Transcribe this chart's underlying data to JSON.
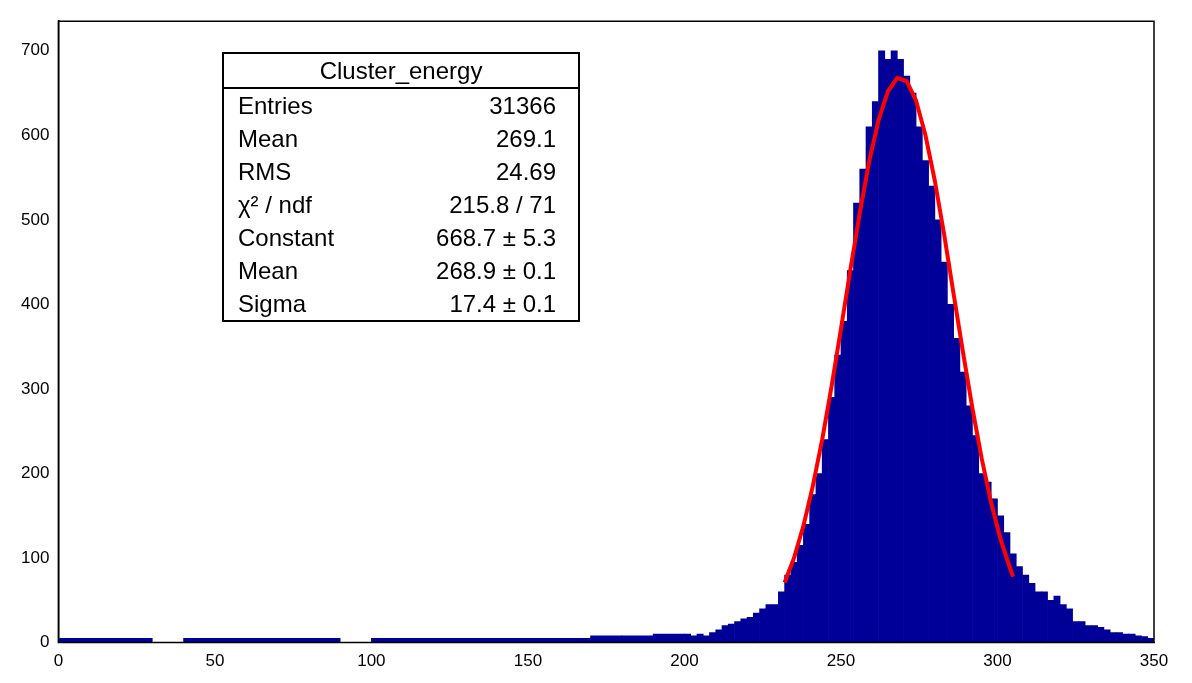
{
  "chart_data": {
    "type": "histogram",
    "title": "Cluster_energy",
    "annotations": [
      "Entries  31366",
      "Mean  269.1",
      "RMS  24.69",
      "χ² / ndf  215.8 / 71",
      "Constant  668.7 ± 5.3",
      "Mean  268.9 ± 0.1",
      "Sigma  17.4 ± 0.1"
    ],
    "bins": [
      0,
      10,
      20,
      30,
      40,
      50,
      60,
      70,
      80,
      90,
      100,
      110,
      120,
      130,
      140,
      150,
      160,
      170,
      180,
      190,
      200,
      202,
      204,
      206,
      208,
      210,
      212,
      214,
      216,
      218,
      220,
      222,
      224,
      226,
      228,
      230,
      232,
      234,
      236,
      238,
      240,
      242,
      244,
      246,
      248,
      250,
      252,
      254,
      256,
      258,
      260,
      262,
      264,
      266,
      268,
      270,
      272,
      274,
      276,
      278,
      280,
      282,
      284,
      286,
      288,
      290,
      292,
      294,
      296,
      298,
      300,
      302,
      304,
      306,
      308,
      310,
      312,
      314,
      316,
      318,
      320,
      322,
      324,
      326,
      328,
      330,
      332,
      334,
      336,
      338,
      340,
      342,
      344,
      346,
      348,
      350
    ],
    "values": [
      5,
      5,
      5,
      0,
      5,
      5,
      5,
      5,
      5,
      0,
      5,
      5,
      5,
      5,
      5,
      5,
      5,
      8,
      8,
      10,
      10,
      8,
      10,
      8,
      12,
      15,
      20,
      22,
      25,
      28,
      30,
      35,
      40,
      45,
      45,
      60,
      80,
      95,
      115,
      140,
      175,
      200,
      240,
      290,
      340,
      380,
      440,
      520,
      560,
      610,
      640,
      700,
      690,
      700,
      690,
      670,
      650,
      610,
      570,
      540,
      500,
      450,
      400,
      360,
      320,
      280,
      245,
      200,
      190,
      170,
      150,
      130,
      105,
      90,
      80,
      70,
      60,
      60,
      50,
      55,
      45,
      40,
      25,
      25,
      20,
      20,
      18,
      15,
      12,
      12,
      10,
      10,
      8,
      7,
      5
    ],
    "color": "#000099",
    "series": [
      {
        "type": "line",
        "color": "#ff0000",
        "x": [
          232,
          235,
          238,
          241,
          244,
          247,
          250,
          253,
          256,
          259,
          262,
          265,
          268,
          271,
          274,
          277,
          280,
          283,
          286,
          289,
          292,
          295,
          298,
          301,
          304,
          305
        ],
        "values": [
          71,
          100,
          138,
          185,
          240,
          303,
          371,
          441,
          508,
          569,
          618,
          652,
          668,
          664,
          641,
          600,
          546,
          482,
          412,
          343,
          277,
          217,
          165,
          122,
          88,
          78
        ]
      }
    ],
    "xlim": [
      0,
      350
    ],
    "xticks": [
      0,
      50,
      100,
      150,
      200,
      250,
      300,
      350
    ],
    "ylim": [
      0,
      735
    ],
    "yticks": [
      0,
      100,
      200,
      300,
      400,
      500,
      600,
      700
    ],
    "grid": false,
    "legend": false
  }
}
